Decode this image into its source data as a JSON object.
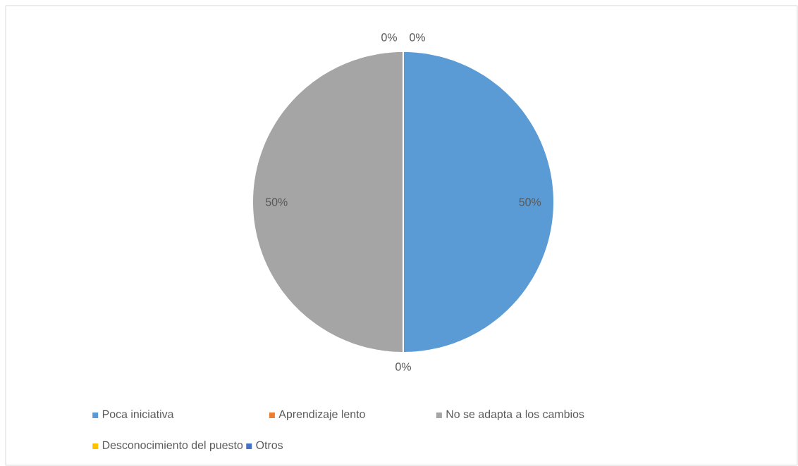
{
  "chart_data": {
    "type": "pie",
    "categories": [
      "Poca iniciativa",
      "Aprendizaje lento",
      "No se adapta a los cambios",
      "Desconocimiento del puesto",
      "Otros"
    ],
    "values": [
      50,
      0,
      50,
      0,
      0
    ],
    "colors": [
      "#5b9bd5",
      "#ed7d31",
      "#a5a5a5",
      "#ffc000",
      "#4472c4"
    ],
    "value_labels": [
      "50%",
      "0%",
      "50%",
      "0%",
      "0%"
    ],
    "legend": "bottom"
  }
}
